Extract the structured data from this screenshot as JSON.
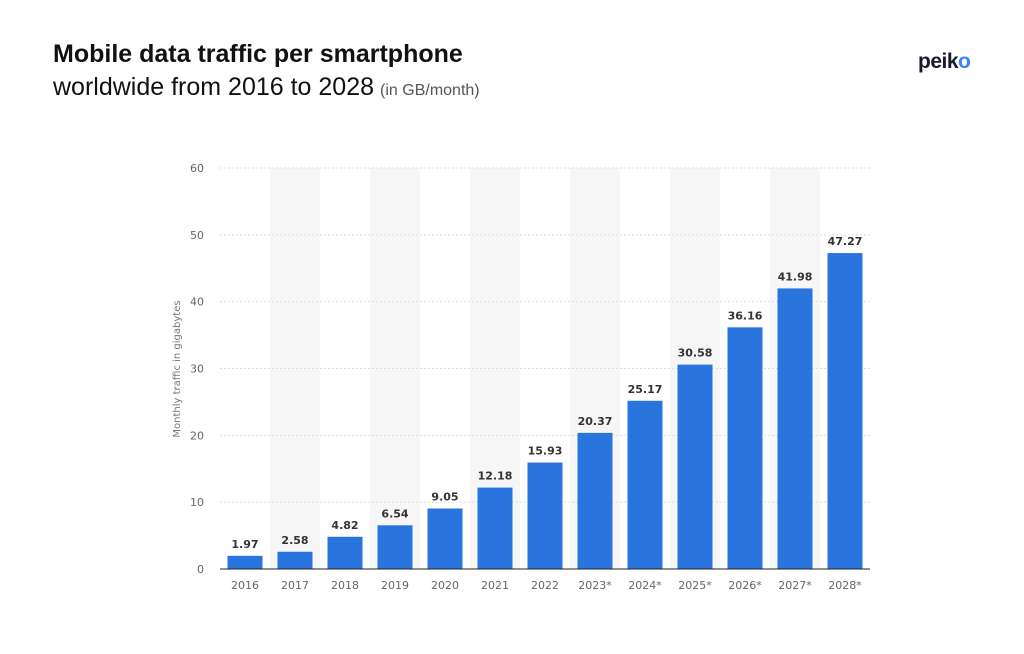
{
  "header": {
    "title_line1": "Mobile data traffic per smartphone",
    "title_line2": "worldwide from 2016 to 2028",
    "unit": "(in GB/month)"
  },
  "logo": {
    "text_main": "peik",
    "text_accent": "o"
  },
  "colors": {
    "bar": "#2a74dd",
    "band": "#f6f6f6",
    "grid": "#dddddd",
    "tick": "#666666",
    "label": "#333333"
  },
  "chart_data": {
    "type": "bar",
    "title": "Mobile data traffic per smartphone worldwide from 2016 to 2028",
    "xlabel": "",
    "ylabel": "Monthly traffic in gigabytes",
    "ylim": [
      0,
      60
    ],
    "yticks": [
      0,
      10,
      20,
      30,
      40,
      50,
      60
    ],
    "grid": true,
    "categories": [
      "2016",
      "2017",
      "2018",
      "2019",
      "2020",
      "2021",
      "2022",
      "2023*",
      "2024*",
      "2025*",
      "2026*",
      "2027*",
      "2028*"
    ],
    "values": [
      1.97,
      2.58,
      4.82,
      6.54,
      9.05,
      12.18,
      15.93,
      20.37,
      25.17,
      30.58,
      36.16,
      41.98,
      47.27
    ],
    "value_labels": [
      "1.97",
      "2.58",
      "4.82",
      "6.54",
      "9.05",
      "12.18",
      "15.93",
      "20.37",
      "25.17",
      "30.58",
      "36.16",
      "41.98",
      "47.27"
    ]
  }
}
